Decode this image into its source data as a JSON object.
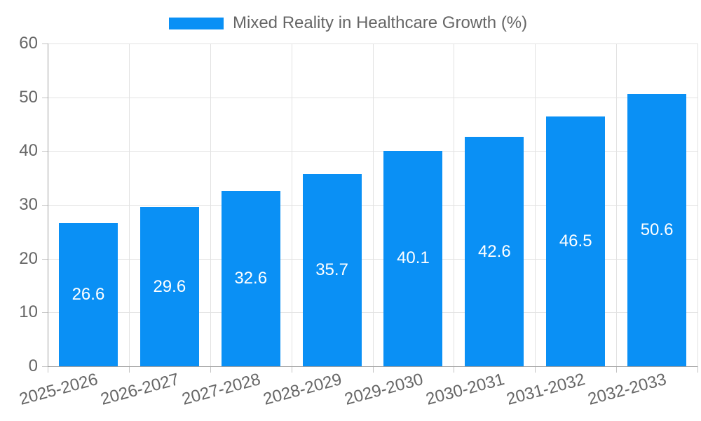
{
  "legend": {
    "label": "Mixed Reality in Healthcare Growth (%)"
  },
  "chart_data": {
    "type": "bar",
    "title": "Mixed Reality in Healthcare Growth (%)",
    "categories": [
      "2025-2026",
      "2026-2027",
      "2027-2028",
      "2028-2029",
      "2029-2030",
      "2030-2031",
      "2031-2032",
      "2032-2033"
    ],
    "values": [
      26.6,
      29.6,
      32.6,
      35.7,
      40.1,
      42.6,
      46.5,
      50.6
    ],
    "value_labels": [
      "26.6",
      "29.6",
      "32.6",
      "35.7",
      "40.1",
      "42.6",
      "46.5",
      "50.6"
    ],
    "xlabel": "",
    "ylabel": "",
    "ylim": [
      0,
      60
    ],
    "yticks": [
      0,
      10,
      20,
      30,
      40,
      50,
      60
    ],
    "grid": true,
    "legend_position": "top-center",
    "value_labels_inside_bars": true,
    "x_labels_rotation_deg": -15
  },
  "colors": {
    "bar": "#0a90f5",
    "grid": "#e2e2e2",
    "axis": "#a0a0a0",
    "tick_mark": "#c4c4c4",
    "text": "#666666",
    "value_label": "#ffffff",
    "background": "#ffffff"
  }
}
